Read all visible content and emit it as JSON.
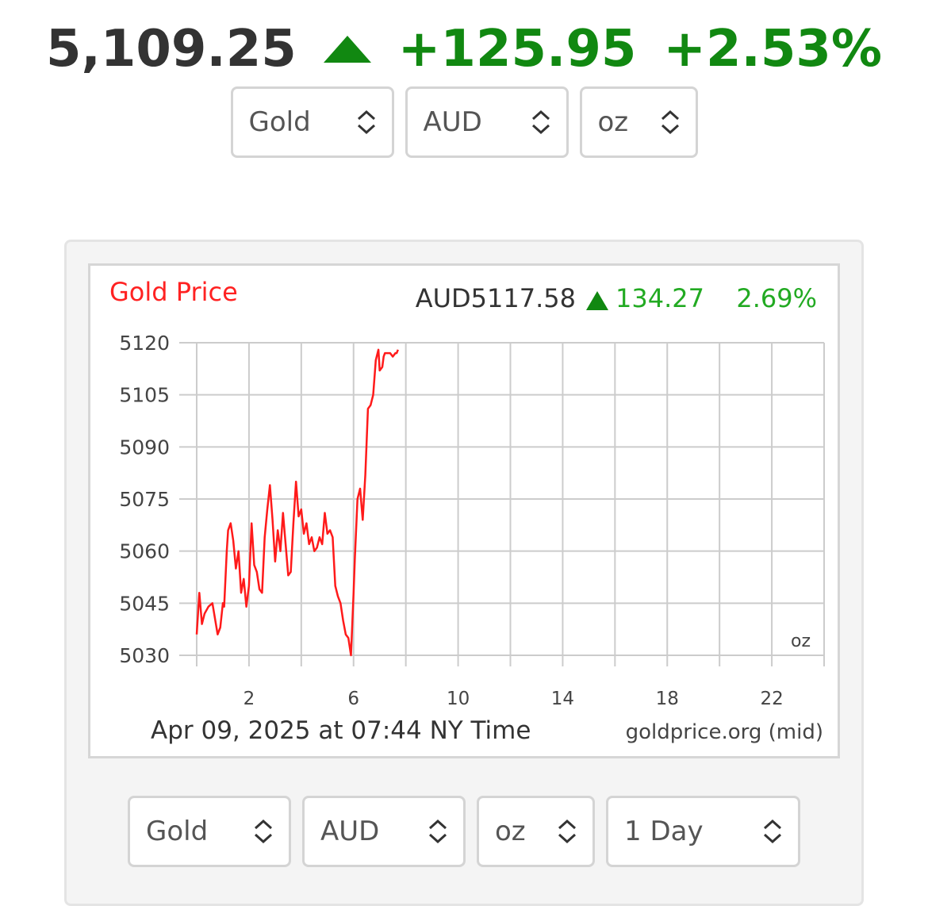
{
  "ticker": {
    "price": "5,109.25",
    "change": "+125.95",
    "change_pct": "+2.53%",
    "direction_icon": "up-triangle-icon",
    "up_color": "#118811"
  },
  "top_selects": [
    {
      "value": "Gold"
    },
    {
      "value": "AUD"
    },
    {
      "value": "oz"
    }
  ],
  "bottom_selects": [
    {
      "value": "Gold"
    },
    {
      "value": "AUD"
    },
    {
      "value": "oz"
    },
    {
      "value": "1 Day"
    }
  ],
  "chart_data": {
    "type": "line",
    "title": "Gold Price",
    "title_color": "#ff2222",
    "quote": "AUD5117.58",
    "quote_change": "134.27",
    "quote_change_pct": "2.69%",
    "unit_label": "oz",
    "timestamp": "Apr 09, 2025 at 07:44 NY Time",
    "source": "goldprice.org (mid)",
    "line_color": "#ff1a1a",
    "grid": true,
    "xlim": [
      0,
      24
    ],
    "ylim": [
      5030,
      5120
    ],
    "x_ticks": [
      2,
      6,
      10,
      14,
      18,
      22
    ],
    "y_ticks": [
      5030,
      5045,
      5060,
      5075,
      5090,
      5105,
      5120
    ],
    "series": [
      {
        "x": [
          0.0,
          0.1,
          0.2,
          0.3,
          0.45,
          0.6,
          0.8,
          0.9,
          1.0,
          1.05,
          1.15,
          1.2,
          1.3,
          1.4,
          1.5,
          1.6,
          1.7,
          1.8,
          1.9,
          2.0,
          2.1,
          2.2,
          2.3,
          2.4,
          2.5,
          2.6,
          2.7,
          2.8,
          2.9,
          3.0,
          3.1,
          3.2,
          3.3,
          3.4,
          3.5,
          3.6,
          3.7,
          3.8,
          3.9,
          4.0,
          4.1,
          4.2,
          4.3,
          4.4,
          4.5,
          4.6,
          4.7,
          4.8,
          4.9,
          5.0,
          5.1,
          5.2,
          5.3,
          5.4,
          5.5,
          5.6,
          5.7,
          5.8,
          5.9,
          6.0,
          6.05,
          6.15,
          6.25,
          6.35,
          6.45,
          6.55,
          6.65,
          6.75,
          6.85,
          6.95,
          7.0,
          7.1,
          7.15,
          7.2,
          7.3,
          7.4,
          7.5,
          7.6,
          7.65,
          7.7
        ],
        "y": [
          5036,
          5048,
          5039,
          5042,
          5044,
          5045,
          5036,
          5038,
          5045,
          5044,
          5060,
          5066,
          5068,
          5063,
          5055,
          5060,
          5048,
          5052,
          5044,
          5050,
          5068,
          5056,
          5054,
          5049,
          5048,
          5064,
          5072,
          5079,
          5069,
          5057,
          5066,
          5060,
          5071,
          5062,
          5053,
          5054,
          5068,
          5080,
          5070,
          5072,
          5065,
          5068,
          5062,
          5064,
          5060,
          5061,
          5064,
          5062,
          5071,
          5065,
          5066,
          5064,
          5050,
          5047,
          5045,
          5040,
          5036,
          5035,
          5030,
          5048,
          5058,
          5075,
          5078,
          5069,
          5082,
          5101,
          5102,
          5105,
          5115,
          5118,
          5112,
          5113,
          5116,
          5117,
          5117,
          5117,
          5116,
          5117,
          5117,
          5118
        ]
      }
    ]
  }
}
